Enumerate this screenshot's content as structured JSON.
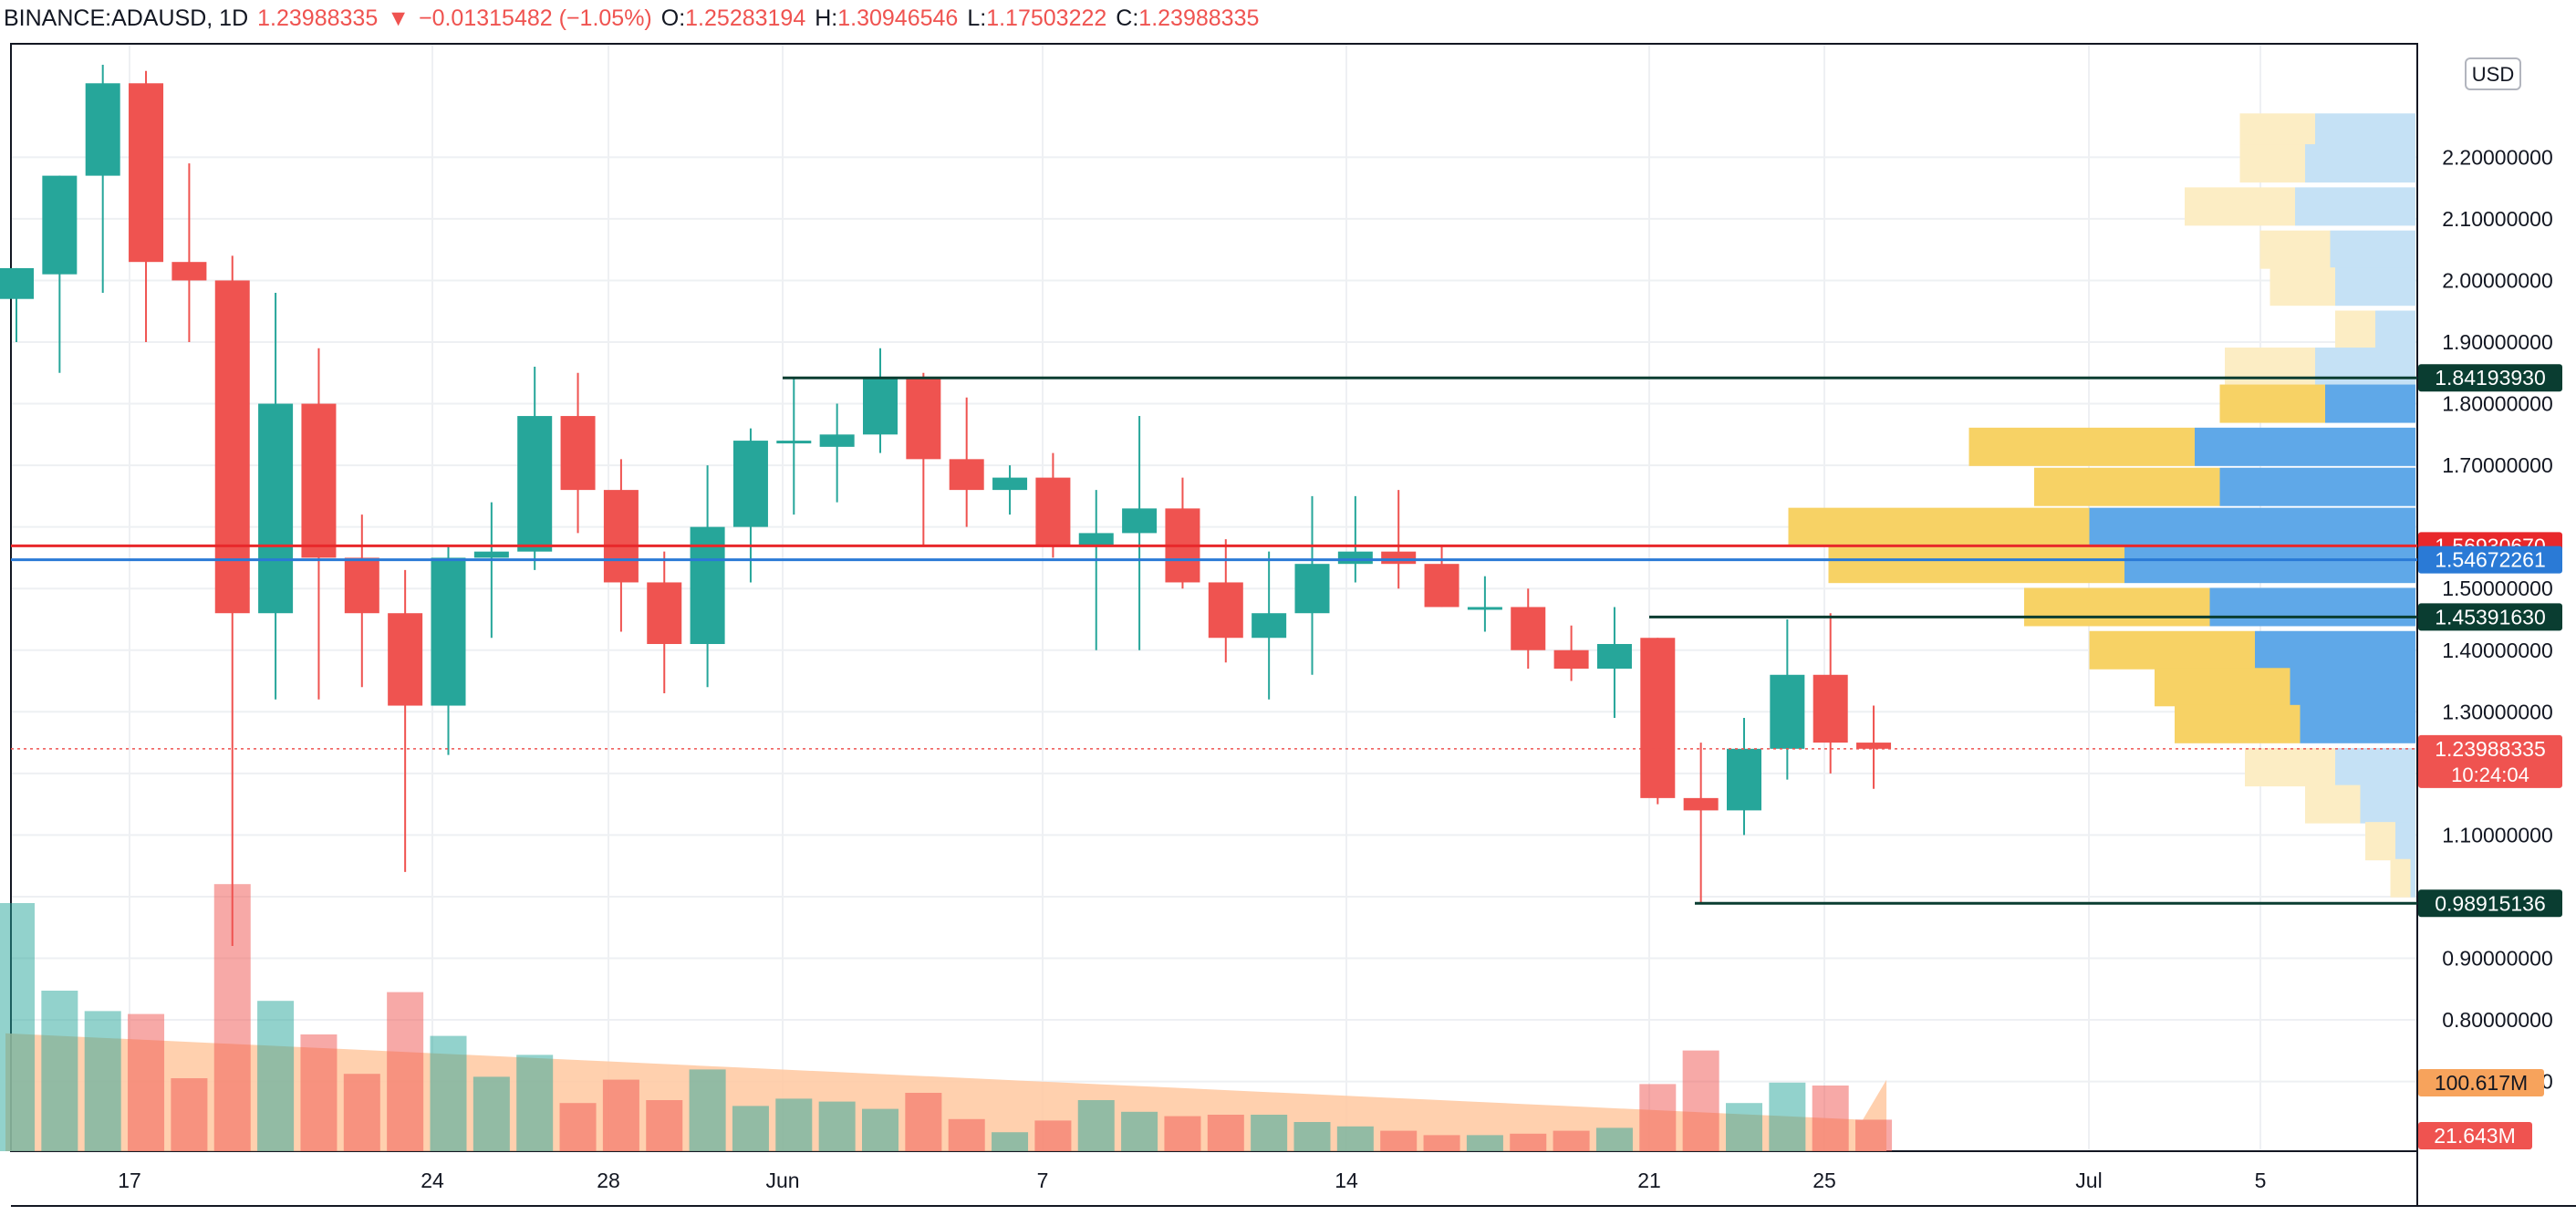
{
  "header": {
    "symbol": "BINANCE:ADAUSD",
    "interval": "1D",
    "last": "1.23988335",
    "change_arrow": "▼",
    "change": "−0.01315482 (−1.05%)",
    "open_label": "O:",
    "open": "1.25283194",
    "high_label": "H:",
    "high": "1.30946546",
    "low_label": "L:",
    "low": "1.17503222",
    "close_label": "C:",
    "close": "1.23988335"
  },
  "currency": "USD",
  "colors": {
    "up": "#26a69a",
    "down": "#ef5350",
    "vp_up": "#5fa8e8",
    "vp_down": "#f7d265",
    "vp_up_light": "#c5e1f5",
    "vp_down_light": "#fcedc4",
    "vol_ma": "#ffc8a0",
    "grid": "#eef0f3",
    "dark_tag": "#0a3d31",
    "red_line": "#e8282b",
    "blue_line": "#2a7ad6",
    "ma_tag": "#f7a35c"
  },
  "x_labels": [
    "17",
    "24",
    "28",
    "Jun",
    "7",
    "14",
    "21",
    "25",
    "Jul",
    "5"
  ],
  "price_ticks": [
    "2.20000000",
    "2.10000000",
    "2.00000000",
    "1.90000000",
    "1.80000000",
    "1.70000000",
    "1.50000000",
    "1.40000000",
    "1.30000000",
    "1.10000000",
    "0.90000000",
    "0.80000000",
    "0.70000000"
  ],
  "tags": [
    {
      "label": "1.84193930",
      "kind": "dark",
      "price": 1.8419393
    },
    {
      "label": "1.56930670",
      "kind": "red",
      "price": 1.5693067
    },
    {
      "label": "1.54672261",
      "kind": "blue",
      "price": 1.54672261
    },
    {
      "label": "1.45391630",
      "kind": "dark",
      "price": 1.4539163
    },
    {
      "label": "1.23988335",
      "kind": "last",
      "price": 1.23988335
    },
    {
      "label": "0.98915136",
      "kind": "dark",
      "price": 0.98915136
    }
  ],
  "countdown": "10:24:04",
  "volume_ma_tag": "100.617M",
  "volume_tag": "21.643M",
  "chart_data": {
    "type": "candlestick",
    "symbol": "ADAUSD",
    "interval": "1D",
    "ylim": [
      0.54,
      2.29
    ],
    "candles": [
      {
        "o": 1.97,
        "h": 2.02,
        "l": 1.9,
        "c": 2.02,
        "vol": 170
      },
      {
        "o": 2.01,
        "h": 2.17,
        "l": 1.85,
        "c": 2.17,
        "vol": 110
      },
      {
        "o": 2.17,
        "h": 2.35,
        "l": 1.98,
        "c": 2.32,
        "vol": 96
      },
      {
        "o": 2.32,
        "h": 2.34,
        "l": 1.9,
        "c": 2.03,
        "vol": 94
      },
      {
        "o": 2.03,
        "h": 2.19,
        "l": 1.9,
        "c": 2.0,
        "vol": 50
      },
      {
        "o": 2.0,
        "h": 2.04,
        "l": 0.92,
        "c": 1.46,
        "vol": 183
      },
      {
        "o": 1.46,
        "h": 1.98,
        "l": 1.32,
        "c": 1.8,
        "vol": 103
      },
      {
        "o": 1.8,
        "h": 1.89,
        "l": 1.32,
        "c": 1.55,
        "vol": 80
      },
      {
        "o": 1.55,
        "h": 1.62,
        "l": 1.34,
        "c": 1.46,
        "vol": 53
      },
      {
        "o": 1.46,
        "h": 1.53,
        "l": 1.04,
        "c": 1.31,
        "vol": 109
      },
      {
        "o": 1.31,
        "h": 1.57,
        "l": 1.23,
        "c": 1.55,
        "vol": 79
      },
      {
        "o": 1.55,
        "h": 1.64,
        "l": 1.42,
        "c": 1.56,
        "vol": 51
      },
      {
        "o": 1.56,
        "h": 1.86,
        "l": 1.53,
        "c": 1.78,
        "vol": 66
      },
      {
        "o": 1.78,
        "h": 1.85,
        "l": 1.59,
        "c": 1.66,
        "vol": 33
      },
      {
        "o": 1.66,
        "h": 1.71,
        "l": 1.43,
        "c": 1.51,
        "vol": 49
      },
      {
        "o": 1.51,
        "h": 1.56,
        "l": 1.33,
        "c": 1.41,
        "vol": 35
      },
      {
        "o": 1.41,
        "h": 1.7,
        "l": 1.34,
        "c": 1.6,
        "vol": 56
      },
      {
        "o": 1.6,
        "h": 1.76,
        "l": 1.51,
        "c": 1.74,
        "vol": 31
      },
      {
        "o": 1.74,
        "h": 1.84,
        "l": 1.62,
        "c": 1.74,
        "vol": 36
      },
      {
        "o": 1.73,
        "h": 1.8,
        "l": 1.64,
        "c": 1.75,
        "vol": 34
      },
      {
        "o": 1.75,
        "h": 1.89,
        "l": 1.72,
        "c": 1.84,
        "vol": 29
      },
      {
        "o": 1.84,
        "h": 1.85,
        "l": 1.57,
        "c": 1.71,
        "vol": 40
      },
      {
        "o": 1.71,
        "h": 1.81,
        "l": 1.6,
        "c": 1.66,
        "vol": 22
      },
      {
        "o": 1.66,
        "h": 1.7,
        "l": 1.62,
        "c": 1.68,
        "vol": 13
      },
      {
        "o": 1.68,
        "h": 1.72,
        "l": 1.55,
        "c": 1.57,
        "vol": 21
      },
      {
        "o": 1.57,
        "h": 1.66,
        "l": 1.4,
        "c": 1.59,
        "vol": 35
      },
      {
        "o": 1.59,
        "h": 1.78,
        "l": 1.4,
        "c": 1.63,
        "vol": 27
      },
      {
        "o": 1.63,
        "h": 1.68,
        "l": 1.5,
        "c": 1.51,
        "vol": 24
      },
      {
        "o": 1.51,
        "h": 1.58,
        "l": 1.38,
        "c": 1.42,
        "vol": 25
      },
      {
        "o": 1.42,
        "h": 1.56,
        "l": 1.32,
        "c": 1.46,
        "vol": 25
      },
      {
        "o": 1.46,
        "h": 1.65,
        "l": 1.36,
        "c": 1.54,
        "vol": 20
      },
      {
        "o": 1.54,
        "h": 1.65,
        "l": 1.51,
        "c": 1.56,
        "vol": 17
      },
      {
        "o": 1.56,
        "h": 1.66,
        "l": 1.5,
        "c": 1.54,
        "vol": 14
      },
      {
        "o": 1.54,
        "h": 1.57,
        "l": 1.47,
        "c": 1.47,
        "vol": 11
      },
      {
        "o": 1.47,
        "h": 1.52,
        "l": 1.43,
        "c": 1.47,
        "vol": 11
      },
      {
        "o": 1.47,
        "h": 1.5,
        "l": 1.37,
        "c": 1.4,
        "vol": 12
      },
      {
        "o": 1.4,
        "h": 1.44,
        "l": 1.35,
        "c": 1.37,
        "vol": 14
      },
      {
        "o": 1.37,
        "h": 1.47,
        "l": 1.29,
        "c": 1.41,
        "vol": 16
      },
      {
        "o": 1.42,
        "h": 1.42,
        "l": 1.15,
        "c": 1.16,
        "vol": 46
      },
      {
        "o": 1.16,
        "h": 1.25,
        "l": 0.99,
        "c": 1.14,
        "vol": 69
      },
      {
        "o": 1.14,
        "h": 1.29,
        "l": 1.1,
        "c": 1.24,
        "vol": 33
      },
      {
        "o": 1.24,
        "h": 1.45,
        "l": 1.19,
        "c": 1.36,
        "vol": 47
      },
      {
        "o": 1.36,
        "h": 1.46,
        "l": 1.2,
        "c": 1.25,
        "vol": 45
      },
      {
        "o": 1.25,
        "h": 1.31,
        "l": 1.175,
        "c": 1.24,
        "vol": 21.6
      }
    ],
    "volume_ma_last": 100.617,
    "volume_last": 21.643,
    "volume_units": "M",
    "horizontal_lines": [
      1.8419393,
      1.5693067,
      1.54672261,
      1.4539163,
      0.98915136
    ],
    "volume_profile": [
      {
        "p": 2.24,
        "up": 100,
        "down": 75
      },
      {
        "p": 2.19,
        "up": 110,
        "down": 65
      },
      {
        "p": 2.12,
        "up": 120,
        "down": 110
      },
      {
        "p": 2.05,
        "up": 85,
        "down": 70
      },
      {
        "p": 1.99,
        "up": 80,
        "down": 65
      },
      {
        "p": 1.92,
        "up": 40,
        "down": 40
      },
      {
        "p": 1.86,
        "up": 100,
        "down": 90
      },
      {
        "p": 1.8,
        "up": 90,
        "down": 105
      },
      {
        "p": 1.73,
        "up": 220,
        "down": 225
      },
      {
        "p": 1.665,
        "up": 195,
        "down": 185
      },
      {
        "p": 1.6,
        "up": 325,
        "down": 300
      },
      {
        "p": 1.54,
        "up": 290,
        "down": 295
      },
      {
        "p": 1.47,
        "up": 205,
        "down": 185
      },
      {
        "p": 1.4,
        "up": 160,
        "down": 165
      },
      {
        "p": 1.34,
        "up": 125,
        "down": 135
      },
      {
        "p": 1.28,
        "up": 115,
        "down": 125
      },
      {
        "p": 1.21,
        "up": 80,
        "down": 90
      },
      {
        "p": 1.15,
        "up": 55,
        "down": 55
      },
      {
        "p": 1.09,
        "up": 20,
        "down": 30
      },
      {
        "p": 1.03,
        "up": 5,
        "down": 20
      }
    ]
  }
}
